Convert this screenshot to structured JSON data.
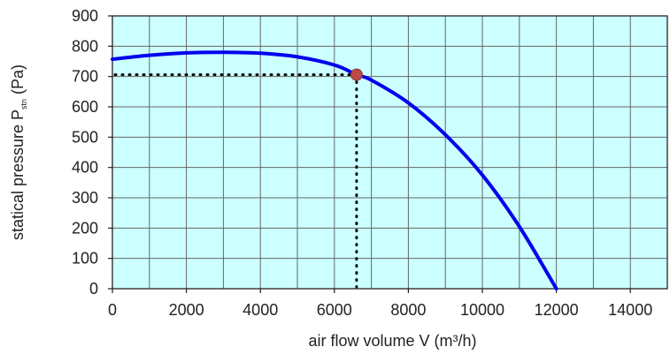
{
  "chart_data": {
    "type": "line",
    "xlabel": "air flow volume V (m³/h)",
    "ylabel": {
      "main": "statical pressure P",
      "sub": "stn",
      "unit": " (Pa)"
    },
    "xlim": [
      0,
      15000
    ],
    "ylim": [
      0,
      900
    ],
    "x_ticks": [
      0,
      2000,
      4000,
      6000,
      8000,
      10000,
      12000,
      14000
    ],
    "y_ticks": [
      0,
      100,
      200,
      300,
      400,
      500,
      600,
      700,
      800,
      900
    ],
    "x_grid_step": 1000,
    "y_grid_step": 100,
    "grid": true,
    "plot_background": "#ccffff",
    "grid_color": "#666666",
    "series": [
      {
        "color": "#0000ee",
        "x": [
          0,
          1000,
          2000,
          3000,
          4000,
          5000,
          6000,
          6600,
          7000,
          8000,
          9000,
          10000,
          11000,
          12000
        ],
        "y": [
          757,
          770,
          778,
          780,
          777,
          765,
          738,
          706,
          688,
          613,
          508,
          375,
          205,
          0
        ]
      }
    ],
    "operating_point": {
      "x": 6600,
      "y": 706,
      "color": "#b94a48"
    },
    "guide_lines": {
      "style": "dotted",
      "color": "#000000"
    }
  }
}
